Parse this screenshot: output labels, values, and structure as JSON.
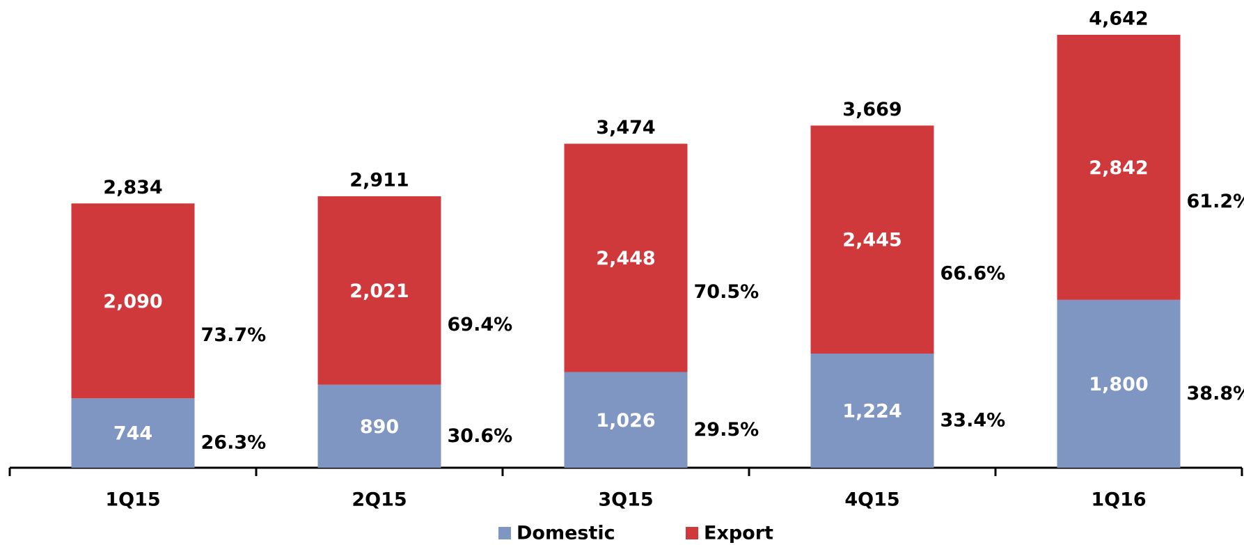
{
  "chart_data": {
    "type": "stacked-bar",
    "categories": [
      "1Q15",
      "2Q15",
      "3Q15",
      "4Q15",
      "1Q16"
    ],
    "series": [
      {
        "name": "Domestic",
        "color": "#7f96c2",
        "values": [
          744,
          890,
          1026,
          1224,
          1800
        ],
        "value_labels": [
          "744",
          "890",
          "1,026",
          "1,224",
          "1,800"
        ],
        "shares": [
          26.3,
          30.6,
          29.5,
          33.4,
          38.8
        ],
        "share_labels": [
          "26.3%",
          "30.6%",
          "29.5%",
          "33.4%",
          "38.8%"
        ]
      },
      {
        "name": "Export",
        "color": "#d0393b",
        "values": [
          2090,
          2021,
          2448,
          2445,
          2842
        ],
        "value_labels": [
          "2,090",
          "2,021",
          "2,448",
          "2,445",
          "2,842"
        ],
        "shares": [
          73.7,
          69.4,
          70.5,
          66.6,
          61.2
        ],
        "share_labels": [
          "73.7%",
          "69.4%",
          "70.5%",
          "66.6%",
          "61.2%"
        ]
      }
    ],
    "totals": [
      2834,
      2911,
      3474,
      3669,
      4642
    ],
    "total_labels": [
      "2,834",
      "2,911",
      "3,474",
      "3,669",
      "4,642"
    ],
    "legend": "bottom"
  }
}
